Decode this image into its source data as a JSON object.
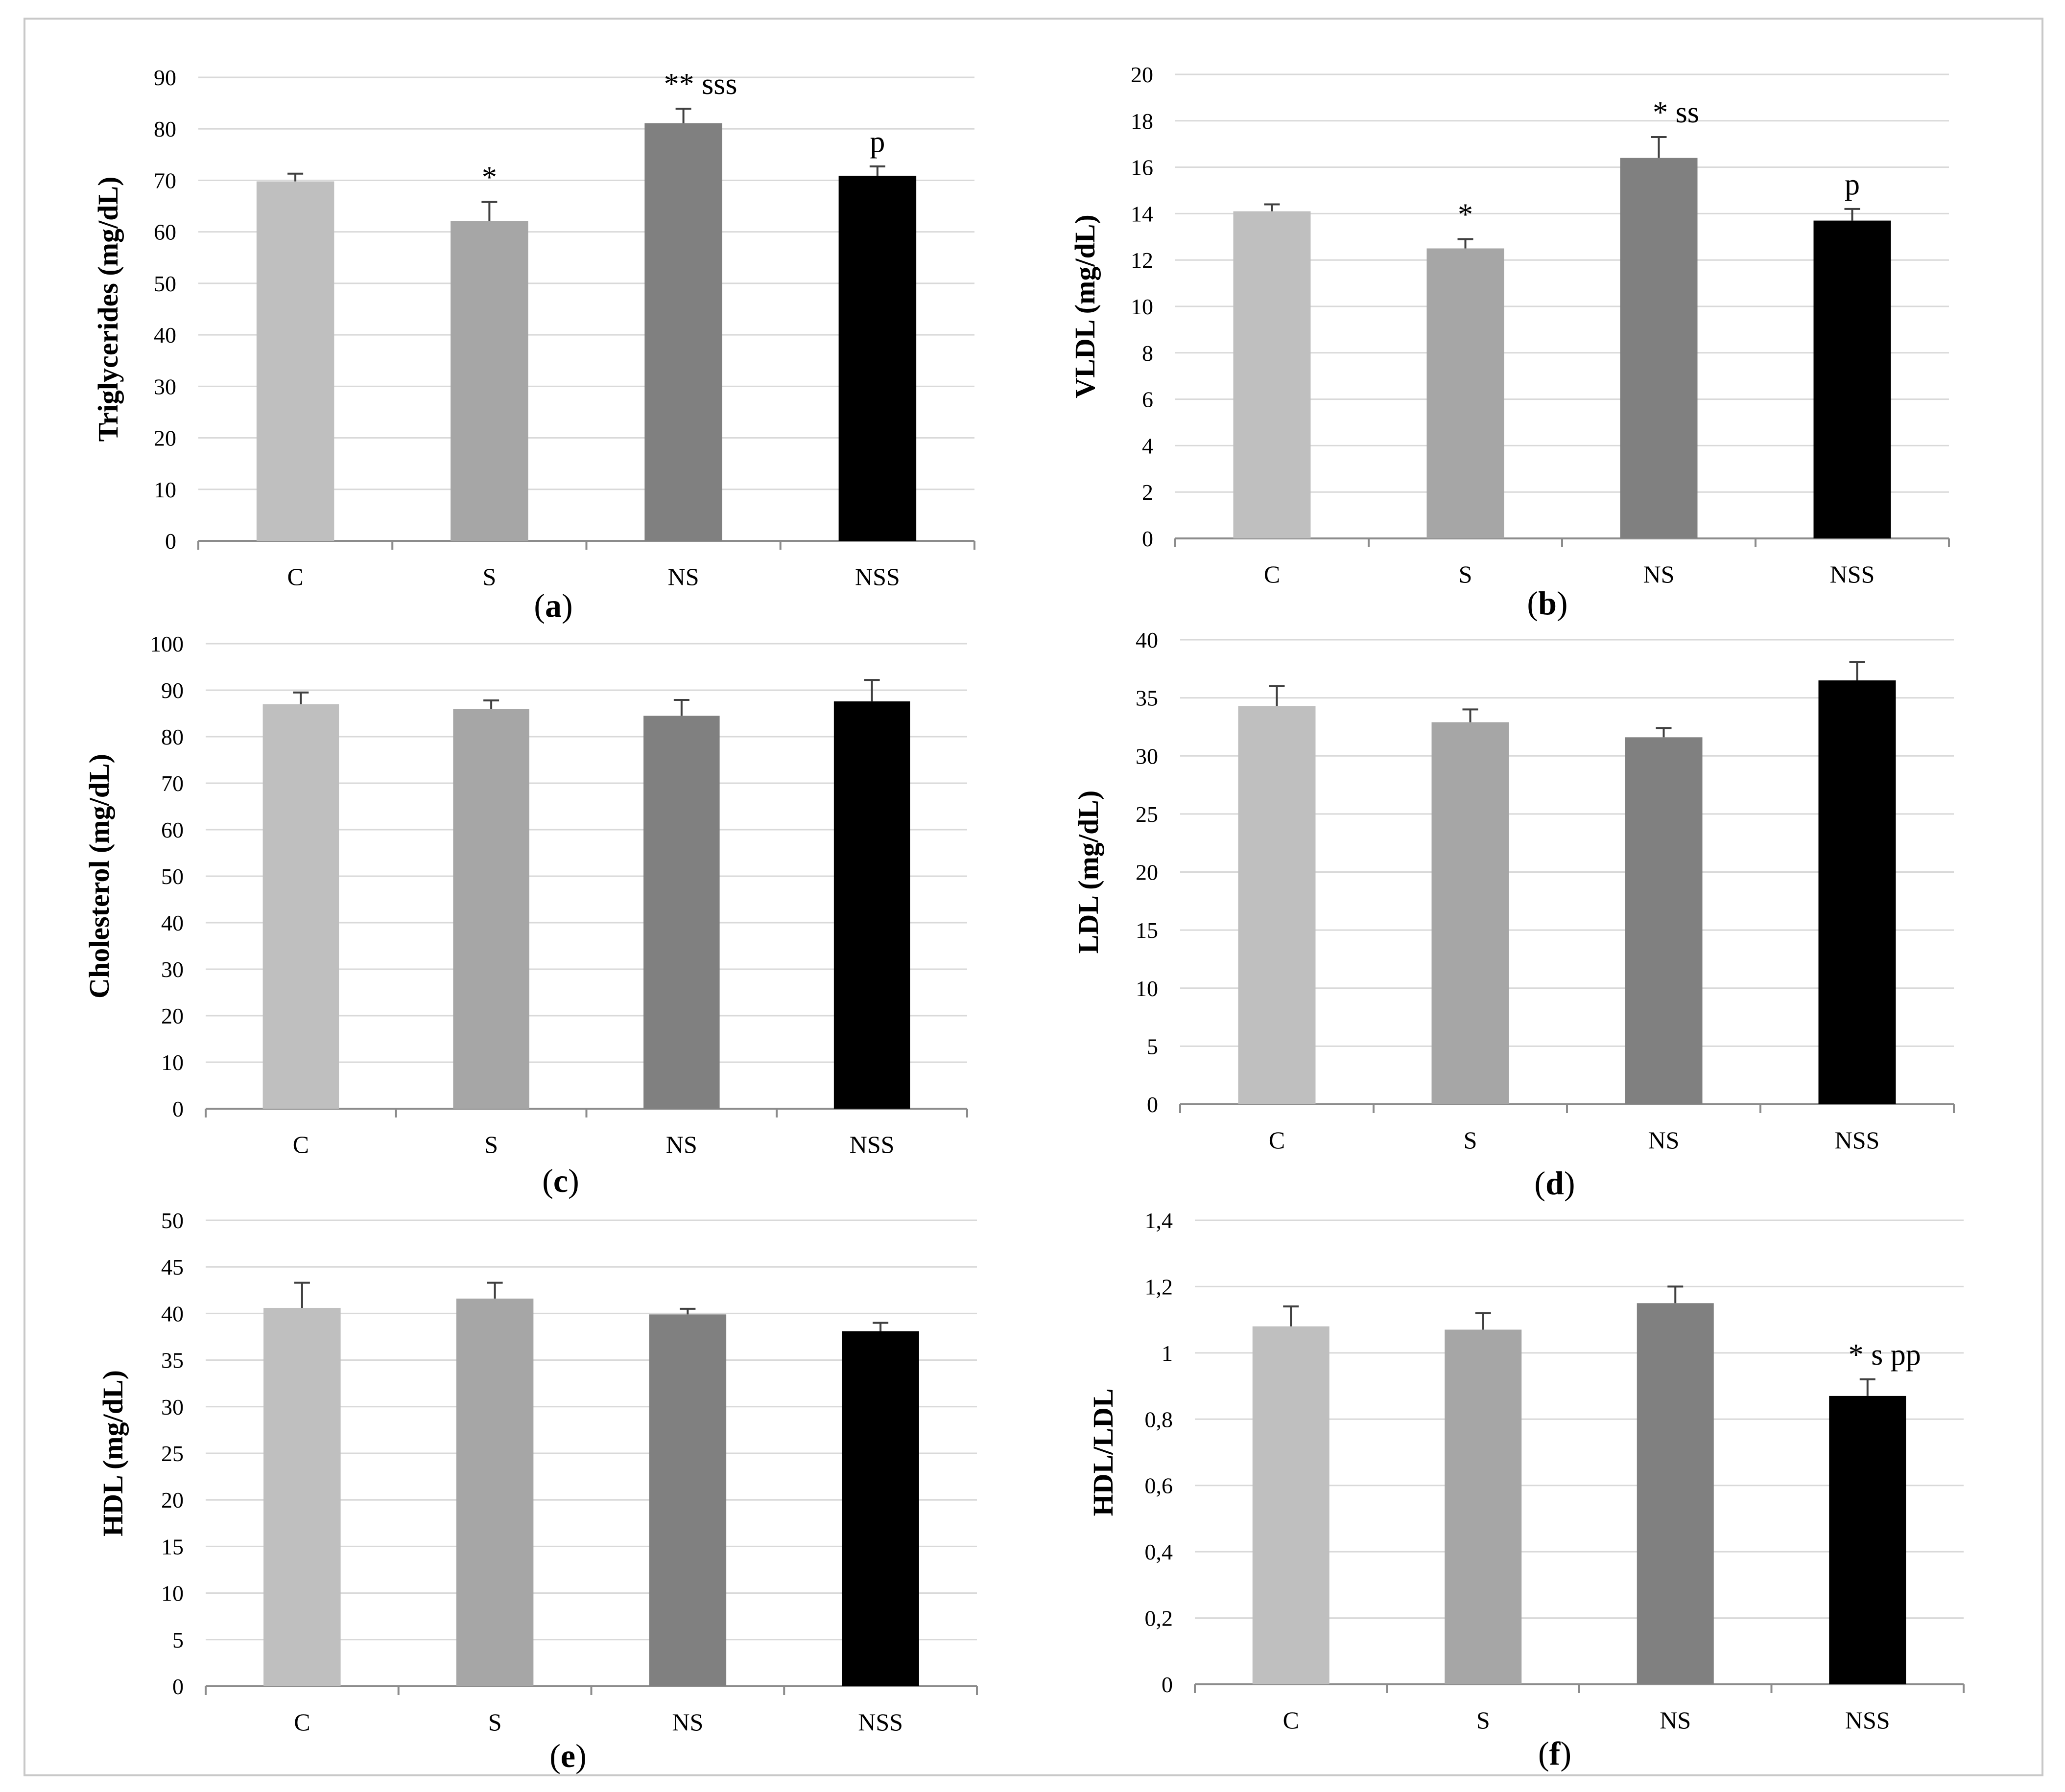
{
  "colors": {
    "C": "#bfbfbf",
    "S": "#a6a6a6",
    "NS": "#808080",
    "NSS": "#000000",
    "grid": "#d9d9d9",
    "axis": "#8c8c8c",
    "frame": "#c8c8c8"
  },
  "chart_data": [
    {
      "type": "bar",
      "panel_label": "a",
      "categories": [
        "C",
        "S",
        "NS",
        "NSS"
      ],
      "values": [
        69.8,
        62.1,
        81.1,
        70.9
      ],
      "errors": [
        1.5,
        3.7,
        2.8,
        1.8
      ],
      "annotations": [
        "",
        "*",
        "** sss",
        "p"
      ],
      "ylabel": "Triglycerides (mg/dL)",
      "ylim": [
        0,
        90
      ],
      "yticks": [
        0,
        10,
        20,
        30,
        40,
        50,
        60,
        70,
        80,
        90
      ],
      "ytick_labels": [
        "0",
        "10",
        "20",
        "30",
        "40",
        "50",
        "60",
        "70",
        "80",
        "90"
      ],
      "grid": true
    },
    {
      "type": "bar",
      "panel_label": "b",
      "categories": [
        "C",
        "S",
        "NS",
        "NSS"
      ],
      "values": [
        14.1,
        12.5,
        16.4,
        13.7
      ],
      "errors": [
        0.3,
        0.4,
        0.9,
        0.5
      ],
      "annotations": [
        "",
        "*",
        "* ss",
        "p"
      ],
      "ylabel": "VLDL (mg/dL)",
      "ylim": [
        0,
        20
      ],
      "yticks": [
        0,
        2,
        4,
        6,
        8,
        10,
        12,
        14,
        16,
        18,
        20
      ],
      "ytick_labels": [
        "0",
        "2",
        "4",
        "6",
        "8",
        "10",
        "12",
        "14",
        "16",
        "18",
        "20"
      ],
      "grid": true
    },
    {
      "type": "bar",
      "panel_label": "c",
      "categories": [
        "C",
        "S",
        "NS",
        "NSS"
      ],
      "values": [
        87.0,
        86.0,
        84.5,
        87.6
      ],
      "errors": [
        2.5,
        1.8,
        3.4,
        4.6
      ],
      "annotations": [
        "",
        "",
        "",
        ""
      ],
      "ylabel": "Cholesterol (mg/dL)",
      "ylim": [
        0,
        100
      ],
      "yticks": [
        0,
        10,
        20,
        30,
        40,
        50,
        60,
        70,
        80,
        90,
        100
      ],
      "ytick_labels": [
        "0",
        "10",
        "20",
        "30",
        "40",
        "50",
        "60",
        "70",
        "80",
        "90",
        "100"
      ],
      "grid": true
    },
    {
      "type": "bar",
      "panel_label": "d",
      "categories": [
        "C",
        "S",
        "NS",
        "NSS"
      ],
      "values": [
        34.3,
        32.9,
        31.6,
        36.5
      ],
      "errors": [
        1.7,
        1.1,
        0.8,
        1.6
      ],
      "annotations": [
        "",
        "",
        "",
        ""
      ],
      "ylabel": "LDL (mg/dL)",
      "ylim": [
        0,
        40
      ],
      "yticks": [
        0,
        5,
        10,
        15,
        20,
        25,
        30,
        35,
        40
      ],
      "ytick_labels": [
        "0",
        "5",
        "10",
        "15",
        "20",
        "25",
        "30",
        "35",
        "40"
      ],
      "grid": true
    },
    {
      "type": "bar",
      "panel_label": "e",
      "categories": [
        "C",
        "S",
        "NS",
        "NSS"
      ],
      "values": [
        40.6,
        41.6,
        39.9,
        38.1
      ],
      "errors": [
        2.7,
        1.7,
        0.6,
        0.9
      ],
      "annotations": [
        "",
        "",
        "",
        ""
      ],
      "ylabel": "HDL (mg/dL)",
      "ylim": [
        0,
        50
      ],
      "yticks": [
        0,
        5,
        10,
        15,
        20,
        25,
        30,
        35,
        40,
        45,
        50
      ],
      "ytick_labels": [
        "0",
        "5",
        "10",
        "15",
        "20",
        "25",
        "30",
        "35",
        "40",
        "45",
        "50"
      ],
      "grid": true
    },
    {
      "type": "bar",
      "panel_label": "f",
      "categories": [
        "C",
        "S",
        "NS",
        "NSS"
      ],
      "values": [
        1.08,
        1.07,
        1.15,
        0.87
      ],
      "errors": [
        0.06,
        0.05,
        0.05,
        0.05
      ],
      "annotations": [
        "",
        "",
        "",
        "* s pp"
      ],
      "ylabel": "HDL/LDL",
      "ylim": [
        0,
        1.4
      ],
      "yticks": [
        0,
        0.2,
        0.4,
        0.6,
        0.8,
        1.0,
        1.2,
        1.4
      ],
      "ytick_labels": [
        "0",
        "0,2",
        "0,4",
        "0,6",
        "0,8",
        "1",
        "1,2",
        "1,4"
      ],
      "grid": true
    }
  ]
}
